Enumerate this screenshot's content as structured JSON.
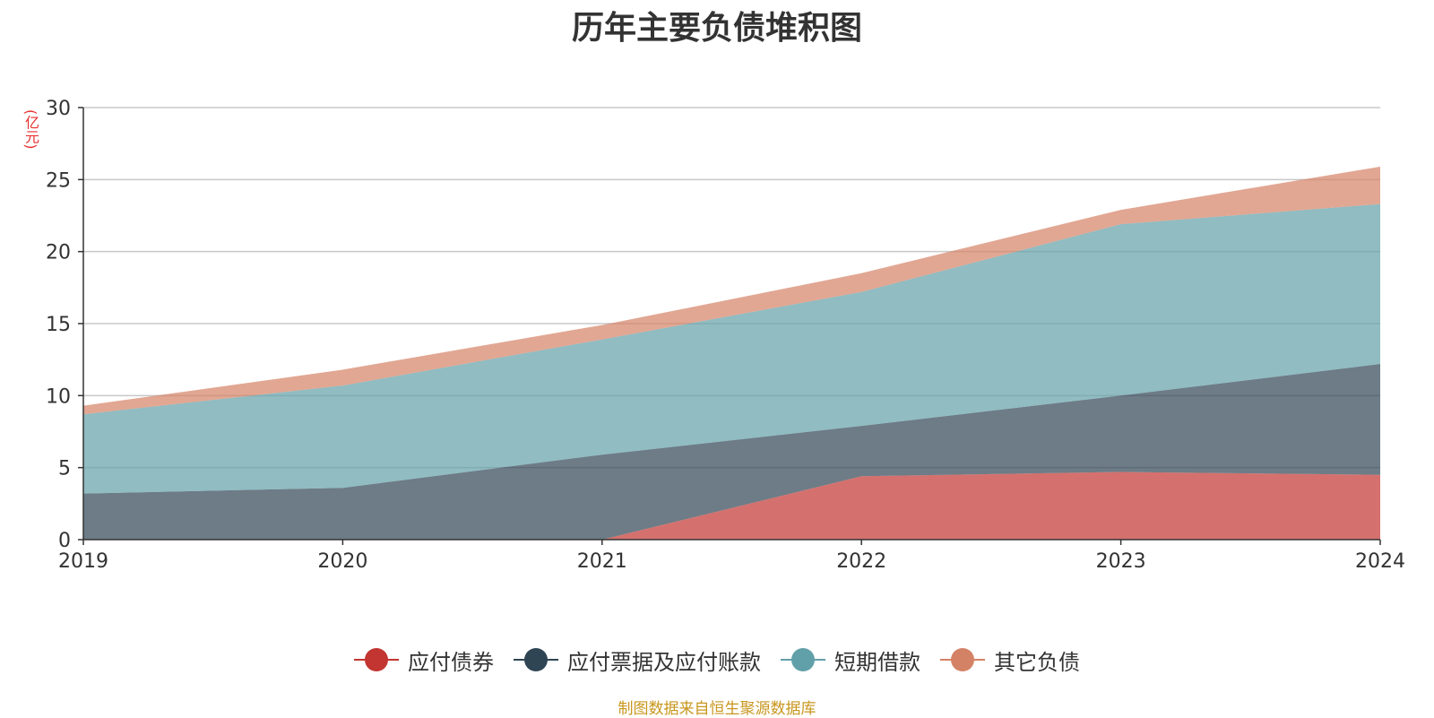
{
  "chart_data": {
    "type": "area",
    "stacked": true,
    "title": "历年主要负债堆积图",
    "ylabel": "(亿元)",
    "xlabel": "",
    "categories": [
      "2019",
      "2020",
      "2021",
      "2022",
      "2023",
      "2024"
    ],
    "ylim": [
      0,
      30
    ],
    "yticks": [
      "0",
      "5",
      "10",
      "15",
      "20",
      "25",
      "30"
    ],
    "grid": true,
    "legend_position": "bottom",
    "series": [
      {
        "name": "应付债券",
        "color": "#c23531",
        "values": [
          0,
          0,
          0,
          4.4,
          4.7,
          4.5
        ]
      },
      {
        "name": "应付票据及应付账款",
        "color": "#2f4554",
        "values": [
          3.2,
          3.6,
          5.9,
          3.5,
          5.3,
          7.7
        ]
      },
      {
        "name": "短期借款",
        "color": "#61a0a8",
        "values": [
          5.5,
          7.1,
          8.0,
          9.3,
          11.9,
          11.1
        ]
      },
      {
        "name": "其它负债",
        "color": "#d48265",
        "values": [
          0.6,
          1.1,
          1.0,
          1.3,
          1.0,
          2.6
        ]
      }
    ]
  },
  "source_note": "制图数据来自恒生聚源数据库"
}
